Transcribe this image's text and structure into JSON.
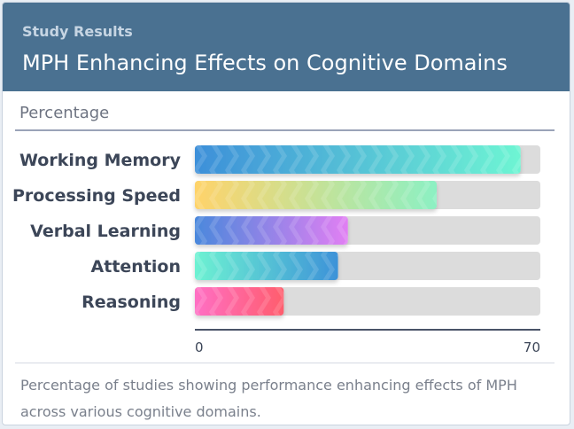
{
  "header": {
    "eyebrow": "Study Results",
    "title": "MPH Enhancing Effects on Cognitive Domains"
  },
  "unit_label": "Percentage",
  "caption": "Percentage of studies showing performance enhancing effects of MPH across various cognitive domains.",
  "colors": {
    "header_bg": "#4a7191",
    "track": "#dcdcdc",
    "axis": "#4a5468"
  },
  "chart_data": {
    "type": "bar",
    "orientation": "horizontal",
    "categories": [
      "Working Memory",
      "Processing Speed",
      "Verbal Learning",
      "Attention",
      "Reasoning"
    ],
    "values": [
      66,
      49,
      31,
      29,
      18
    ],
    "xlim": [
      0,
      70
    ],
    "x_tick_labels": [
      "0",
      "70"
    ],
    "gradients": [
      [
        "#3d8fd9",
        "#6ef5d3"
      ],
      [
        "#ffd36a",
        "#8cf0c3"
      ],
      [
        "#4a88dc",
        "#e17ff3"
      ],
      [
        "#6df2d2",
        "#3d92d8"
      ],
      [
        "#ff6fc4",
        "#ff5d6d"
      ]
    ],
    "grid": false,
    "legend": "none"
  }
}
